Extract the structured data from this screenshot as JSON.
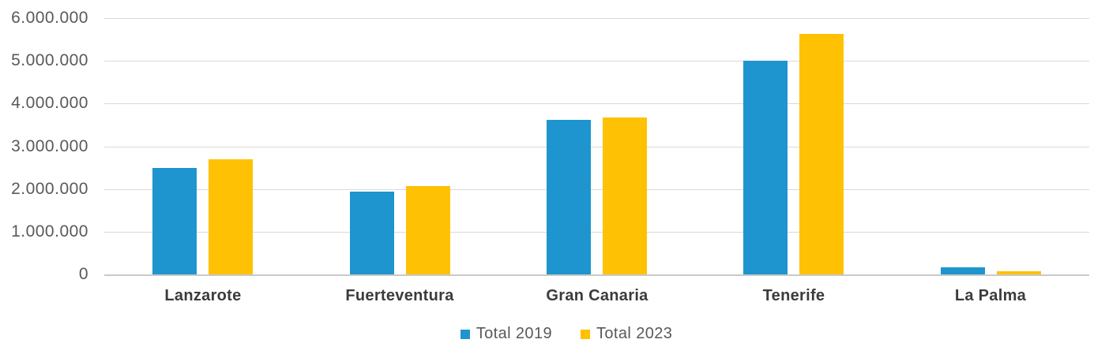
{
  "chart_data": {
    "type": "bar",
    "title": "",
    "xlabel": "",
    "ylabel": "",
    "categories": [
      "Lanzarote",
      "Fuerteventura",
      "Gran Canaria",
      "Tenerife",
      "La Palma"
    ],
    "series": [
      {
        "name": "Total 2019",
        "color": "#1e95ce",
        "values": [
          2500000,
          1930000,
          3620000,
          5000000,
          170000
        ]
      },
      {
        "name": "Total 2023",
        "color": "#ffc103",
        "values": [
          2700000,
          2070000,
          3680000,
          5630000,
          75000
        ]
      }
    ],
    "ylim": [
      0,
      6000000
    ],
    "ytick_step": 1000000,
    "ytick_labels": [
      "0",
      "1.000.000",
      "2.000.000",
      "3.000.000",
      "4.000.000",
      "5.000.000",
      "6.000.000"
    ],
    "grid": "horizontal",
    "gridline_color": "#d9d9d9",
    "axis_line_color": "#c9c9c9",
    "y_tick_text_color": "#595959",
    "x_tick_text_color": "#3b3b3b",
    "legend_position": "bottom",
    "legend_text_color": "#595959"
  }
}
